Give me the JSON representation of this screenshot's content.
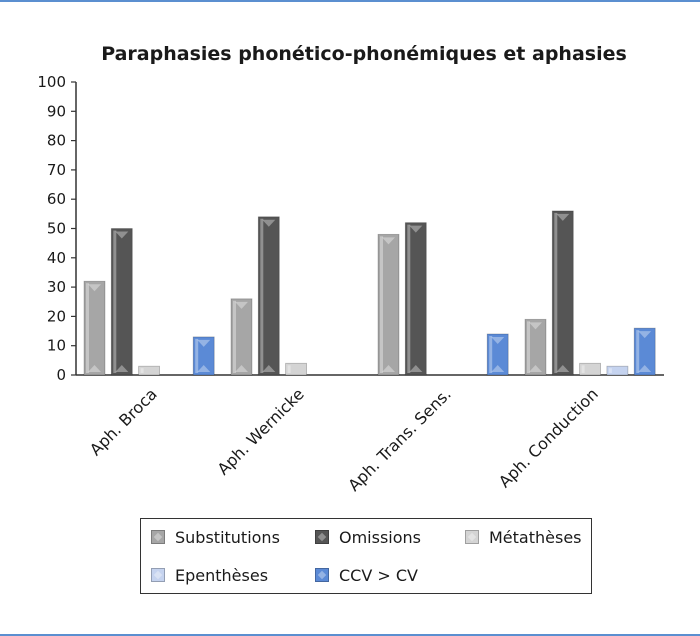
{
  "chart_data": {
    "type": "bar",
    "title": "Paraphasies phonético-phonémiques et aphasies",
    "xlabel": "",
    "ylabel": "",
    "ylim": [
      0,
      100
    ],
    "yticks": [
      0,
      10,
      20,
      30,
      40,
      50,
      60,
      70,
      80,
      90,
      100
    ],
    "categories": [
      "Aph. Broca",
      "Aph. Wernicke",
      "Aph. Trans. Sens.",
      "Aph. Conduction"
    ],
    "series": [
      {
        "name": "Substitutions",
        "color": "#a6a6a6",
        "values": [
          32,
          26,
          48,
          19
        ]
      },
      {
        "name": "Omissions",
        "color": "#555555",
        "values": [
          50,
          54,
          52,
          56
        ]
      },
      {
        "name": "Métathèses",
        "color": "#d4d4d4",
        "values": [
          3,
          4,
          0,
          4
        ]
      },
      {
        "name": "Epenthèses",
        "color": "#c5d3ef",
        "values": [
          0,
          0,
          0,
          3
        ]
      },
      {
        "name": "CCV > CV",
        "color": "#5b8ad6",
        "values": [
          13,
          0,
          14,
          16
        ]
      }
    ],
    "grid": false,
    "legend_position": "bottom"
  }
}
